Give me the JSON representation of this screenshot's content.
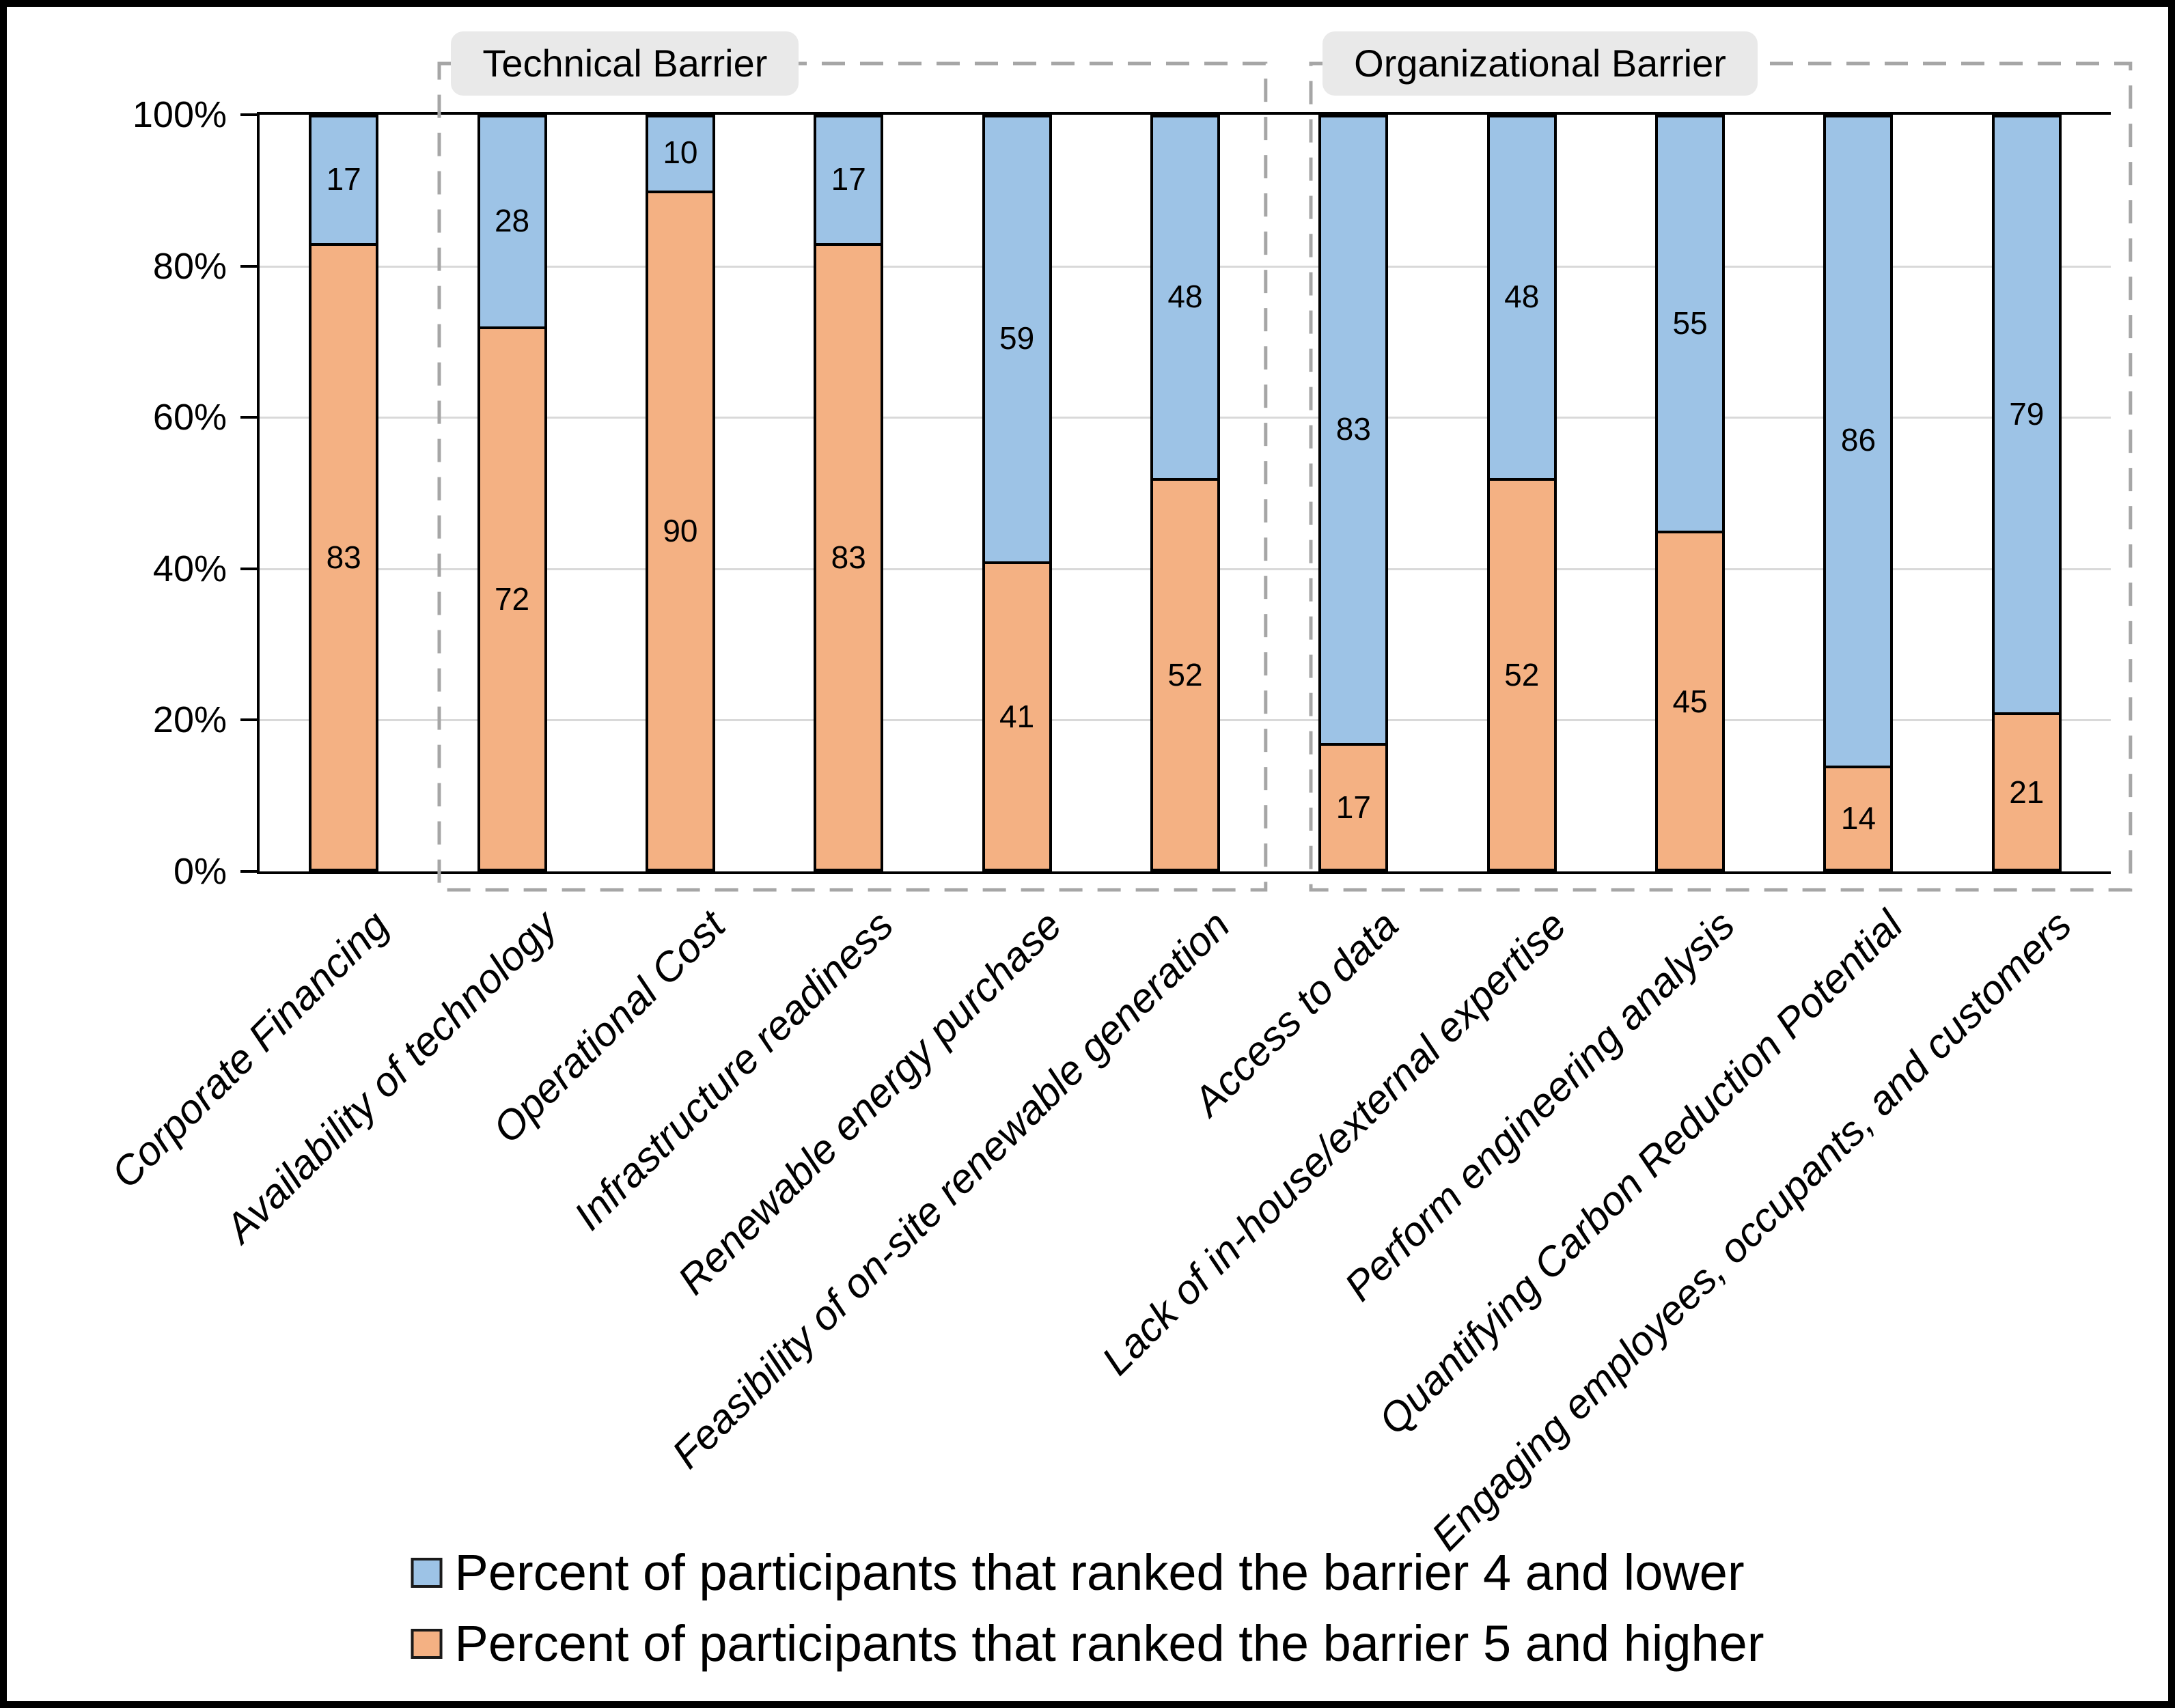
{
  "chart_data": {
    "type": "bar",
    "stacked": true,
    "title": "",
    "xlabel": "",
    "ylabel": "",
    "ylim": [
      0,
      100
    ],
    "y_ticks": [
      "0%",
      "20%",
      "40%",
      "60%",
      "80%",
      "100%"
    ],
    "grid": true,
    "categories": [
      "Corporate Financing",
      "Availability of technology",
      "Operational Cost",
      "Infrastructure readiness",
      "Renewable energy purchase",
      "Feasibility of on-site renewable generation",
      "Access to data",
      "Lack of in-house/external expertise",
      "Perform engineering analysis",
      "Quantifying Carbon Reduction Potential",
      "Engaging employees, occupants, and customers"
    ],
    "series": [
      {
        "name": "Percent of participants that ranked the barrier 5 and higher",
        "color": "#F4B183",
        "stack_position": "bottom",
        "values": [
          83,
          72,
          90,
          83,
          41,
          52,
          17,
          52,
          45,
          14,
          21
        ]
      },
      {
        "name": "Percent of participants that ranked the barrier 4 and lower",
        "color": "#9DC3E6",
        "stack_position": "top",
        "values": [
          17,
          28,
          10,
          17,
          59,
          48,
          83,
          48,
          55,
          86,
          79
        ]
      }
    ],
    "groups": [
      {
        "label": "Technical Barrier",
        "from_category_index": 1,
        "to_category_index": 5
      },
      {
        "label": "Organizational Barrier",
        "from_category_index": 6,
        "to_category_index": 10
      }
    ],
    "legend": [
      {
        "label": "Percent of participants that ranked the barrier 4 and lower",
        "color": "#9DC3E6"
      },
      {
        "label": "Percent of participants that ranked the barrier 5 and higher",
        "color": "#F4B183"
      }
    ],
    "legend_position": "bottom"
  },
  "colors": {
    "background": "#FFFFFF",
    "text": "#000000",
    "bar_border": "#000000",
    "gridline": "#D9D9D9",
    "axis": "#000000",
    "group_box_dash": "#A6A6A6",
    "group_label_bg": "#E9E9E9",
    "legend_marker_border": "#1A1A1A"
  }
}
